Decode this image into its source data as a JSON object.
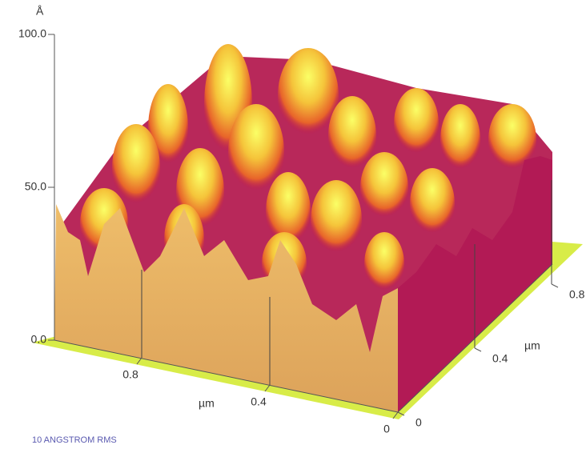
{
  "chart_data": {
    "type": "surface",
    "z_unit": "Å",
    "zlim": [
      0,
      100
    ],
    "zticks": [
      {
        "value": 0,
        "label": "0.0"
      },
      {
        "value": 50,
        "label": "50.0"
      },
      {
        "value": 100,
        "label": "100.0"
      }
    ],
    "x_label": "µm",
    "xticks": [
      0.8,
      0.4,
      0
    ],
    "y_label": "µm",
    "yticks": [
      0,
      0.4,
      0.8
    ],
    "caption": "10 ANGSTROM RMS"
  }
}
